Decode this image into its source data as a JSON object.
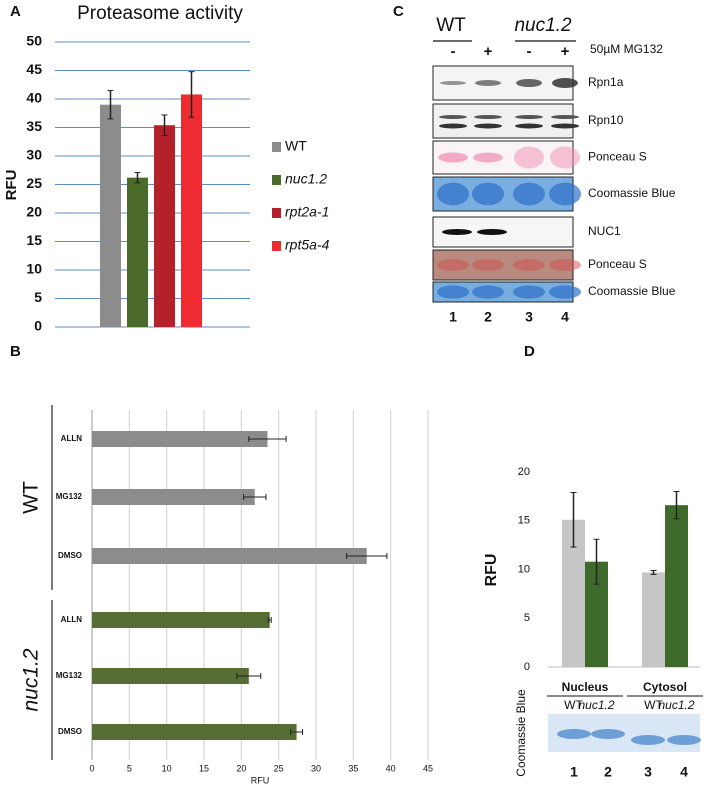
{
  "chart_data": [
    {
      "type": "bar",
      "panel": "A",
      "title": "Proteasome activity",
      "y_label": "RFU",
      "categories": [
        "WT",
        "nuc1.2",
        "rpt2a-1",
        "rpt5a-4"
      ],
      "colors": [
        "#8c8c8c",
        "#4a6b2a",
        "#b5212b",
        "#ee2b30"
      ],
      "values": [
        39,
        26.2,
        35.4,
        40.8
      ],
      "errors": [
        2.5,
        0.9,
        1.8,
        4.0
      ],
      "ylim": [
        0,
        50
      ],
      "yticks": [
        0,
        5,
        10,
        15,
        20,
        25,
        30,
        35,
        40,
        45,
        50
      ],
      "grid": true
    },
    {
      "type": "hbar",
      "panel": "B",
      "x_label": "RFU",
      "groups": [
        {
          "name": "WT",
          "color": "#8c8c8c",
          "categories": [
            "ALLN",
            "MG132",
            "DMSO"
          ],
          "values": [
            23.5,
            21.8,
            36.8
          ],
          "errors": [
            2.5,
            1.5,
            2.7
          ]
        },
        {
          "name": "nuc1.2",
          "color": "#566e34",
          "categories": [
            "ALLN",
            "MG132",
            "DMSO"
          ],
          "values": [
            23.8,
            21.0,
            27.4
          ],
          "errors": [
            0.2,
            1.6,
            0.8
          ]
        }
      ],
      "xlim": [
        0,
        45
      ],
      "xticks": [
        0,
        5,
        10,
        15,
        20,
        25,
        30,
        35,
        40,
        45
      ],
      "grid": true
    },
    {
      "type": "grouped_bar",
      "panel": "D",
      "y_label": "RFU",
      "categories": [
        "Nucleus",
        "Cytosol"
      ],
      "series": [
        {
          "name": "WT",
          "color": "#c6c6c6",
          "values": [
            15.1,
            9.7
          ],
          "errors": [
            2.8,
            0.2
          ]
        },
        {
          "name": "nuc1.2",
          "color": "#3e6a2c",
          "values": [
            10.8,
            16.6
          ],
          "errors": [
            2.3,
            1.4
          ]
        }
      ],
      "ylim": [
        0,
        20
      ],
      "yticks": [
        0,
        5,
        10,
        15,
        20
      ],
      "gel_label": "Coomassie Blue",
      "lanes": [
        "1",
        "2",
        "3",
        "4"
      ]
    }
  ],
  "blot": {
    "panel": "C",
    "genotypes": [
      "WT",
      "nuc1.2"
    ],
    "treatment": "50µM MG132",
    "signs": [
      "-",
      "+",
      "-",
      "+"
    ],
    "rows": [
      "Rpn1a",
      "Rpn10",
      "Ponceau S",
      "Coomassie Blue",
      "NUC1",
      "Ponceau S",
      "Coomassie Blue"
    ],
    "lanes": [
      "1",
      "2",
      "3",
      "4"
    ]
  }
}
